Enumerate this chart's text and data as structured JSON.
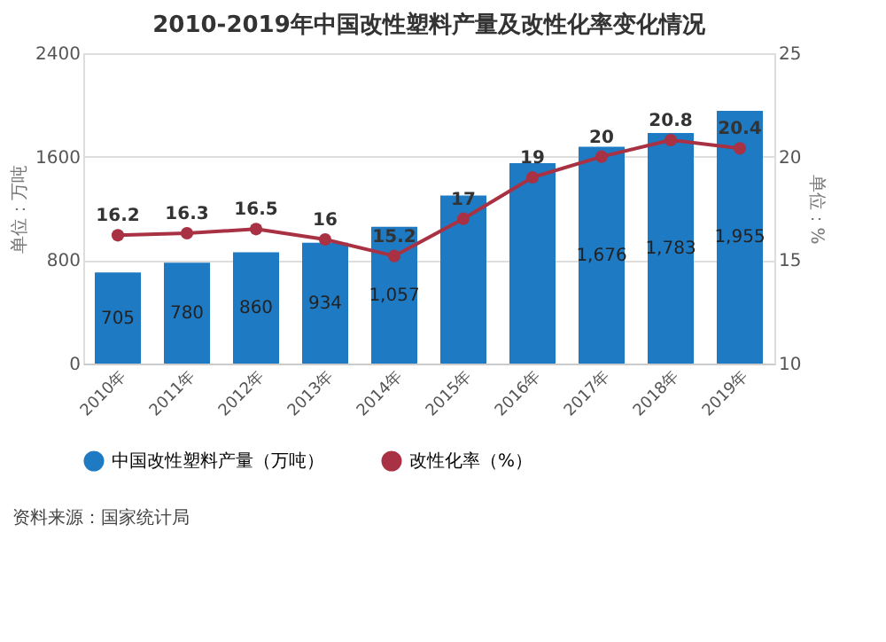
{
  "chart_data": {
    "type": "bar",
    "title": "2010-2019年中国改性塑料产量及改性化率变化情况",
    "categories": [
      "2010年",
      "2011年",
      "2012年",
      "2013年",
      "2014年",
      "2015年",
      "2016年",
      "2017年",
      "2018年",
      "2019年"
    ],
    "series": [
      {
        "name": "中国改性塑料产量（万吨）",
        "color": "#1f7ac4",
        "values": [
          705,
          780,
          860,
          934,
          1057,
          1300,
          1550,
          1676,
          1783,
          1955
        ],
        "value_labels": [
          "705",
          "780",
          "860",
          "934",
          "1,057",
          null,
          null,
          "1,676",
          "1,783",
          "1,955"
        ]
      },
      {
        "name": "改性化率（%）",
        "type": "line",
        "axis": "y2",
        "color": "#a83244",
        "marker": "circle",
        "values": [
          16.2,
          16.3,
          16.5,
          16,
          15.2,
          17,
          19,
          20,
          20.8,
          20.4
        ],
        "value_labels": [
          "16.2",
          "16.3",
          "16.5",
          "16",
          "15.2",
          "17",
          "19",
          "20",
          "20.8",
          "20.4"
        ]
      }
    ],
    "ylabel": "单位：万吨",
    "y2label": "单位：%",
    "ylim": [
      0,
      2400
    ],
    "yticks": [
      0,
      800,
      1600,
      2400
    ],
    "y2lim": [
      10,
      25
    ],
    "y2ticks": [
      10,
      15,
      20,
      25
    ],
    "grid": "y",
    "legend": "bottom",
    "annotations": [
      "资料来源：国家统计局"
    ]
  }
}
